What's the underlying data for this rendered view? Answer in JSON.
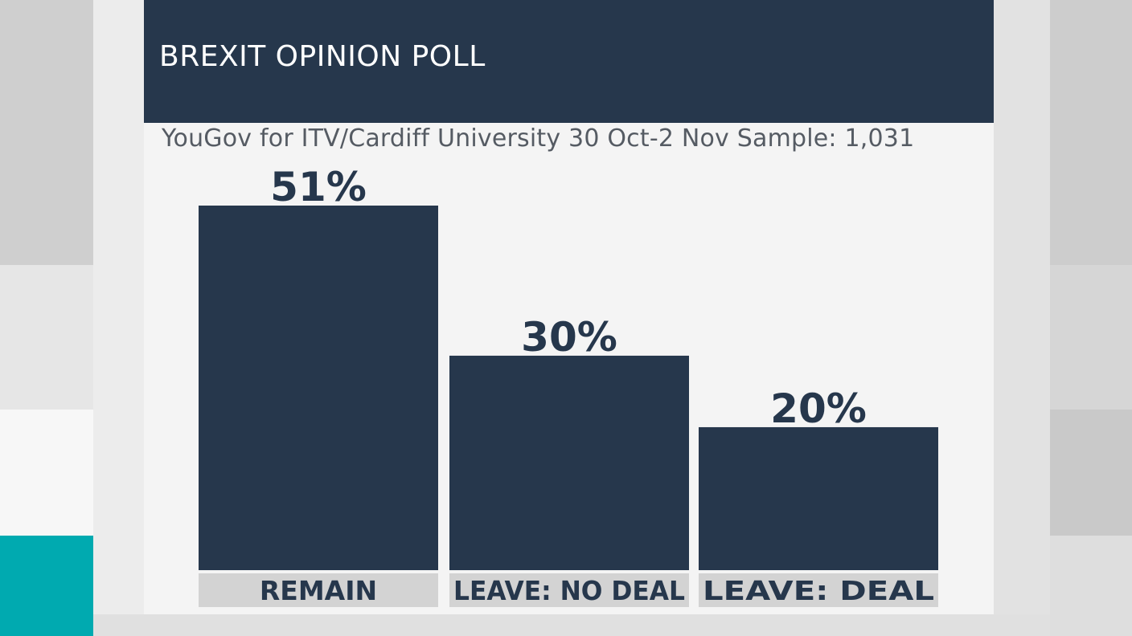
{
  "graphic": {
    "title": "BREXIT OPINION POLL",
    "subtitle": "YouGov for ITV/Cardiff University 30 Oct-2 Nov Sample: 1,031"
  },
  "colors": {
    "bar": "#26374c",
    "header": "#26374c",
    "accent": "#00aab0",
    "category_bg": "#d3d3d3"
  },
  "chart_data": {
    "type": "bar",
    "title": "BREXIT OPINION POLL",
    "subtitle": "YouGov for ITV/Cardiff University 30 Oct-2 Nov Sample: 1,031",
    "categories": [
      "REMAIN",
      "LEAVE: NO DEAL",
      "LEAVE: DEAL"
    ],
    "values": [
      51,
      30,
      20
    ],
    "value_labels": [
      "51%",
      "30%",
      "20%"
    ],
    "unit": "%",
    "ylim": [
      0,
      51
    ],
    "xlabel": "",
    "ylabel": "",
    "grid": false
  }
}
